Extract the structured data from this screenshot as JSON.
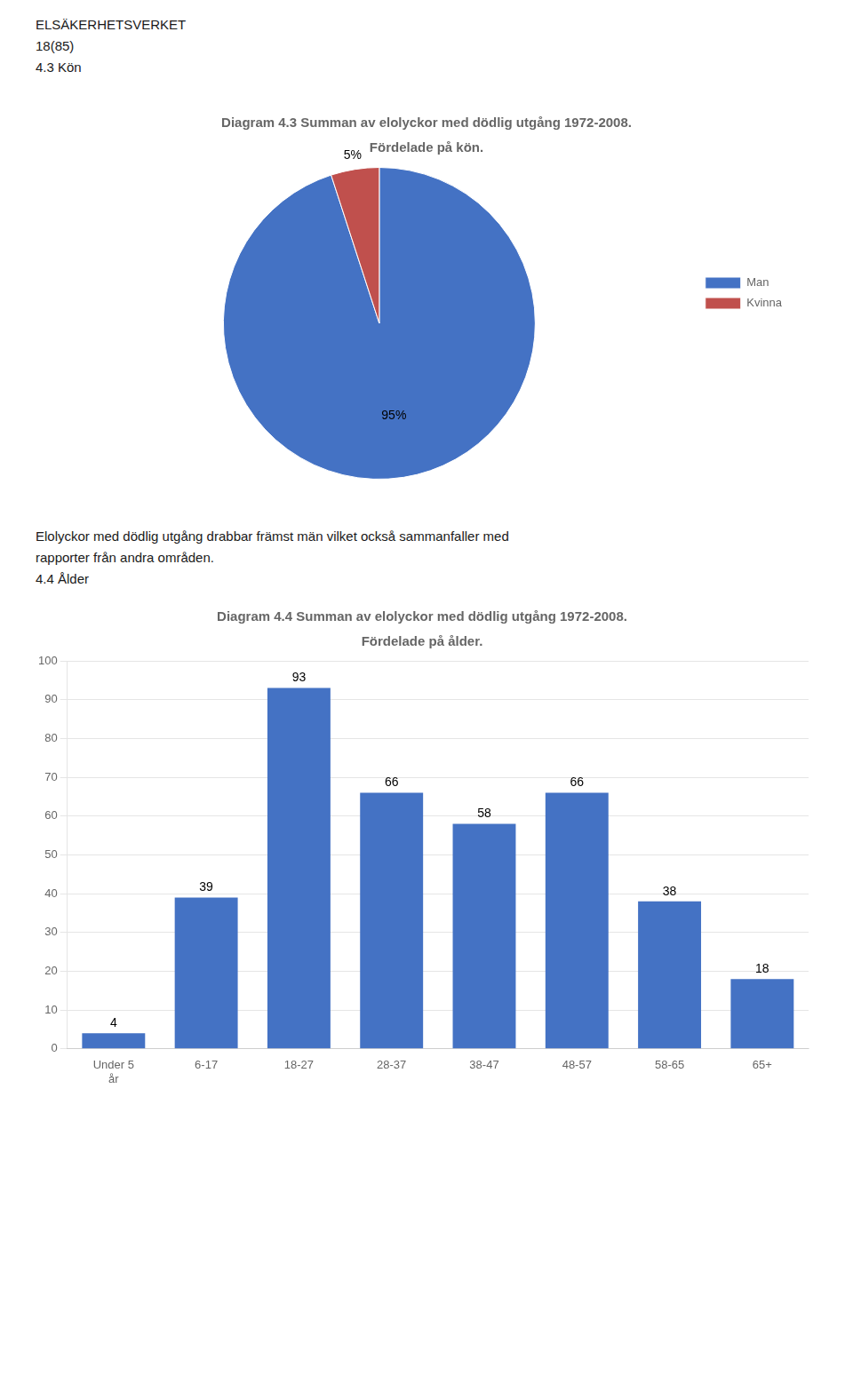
{
  "chart_data": [
    {
      "type": "pie",
      "title": "Diagram 4.3 Summan av elolyckor med dödlig utgång 1972-2008.",
      "subtitle": "Fördelade på kön.",
      "annotations": [
        "ELSÄKERHETSVERKET",
        "18(85)",
        "4.3 Kön"
      ],
      "categories": [
        "Man",
        "Kvinna"
      ],
      "values": [
        95,
        5
      ],
      "value_labels": [
        "95%",
        "5%"
      ],
      "colors": [
        "#4472C4",
        "#C0504D"
      ],
      "data_labels": true,
      "legend": "right"
    },
    {
      "type": "bar",
      "title": "Diagram 4.4 Summan av elolyckor med dödlig utgång 1972-2008.",
      "subtitle": "Fördelade på ålder.",
      "annotations": [
        "Elolyckor med dödlig utgång drabbar främst män vilket också sammanfaller med",
        "rapporter från andra områden.",
        "4.4 Ålder"
      ],
      "categories": [
        "Under 5\når",
        "6-17",
        "18-27",
        "28-37",
        "38-47",
        "48-57",
        "58-65",
        "65+"
      ],
      "values": [
        4,
        39,
        93,
        66,
        58,
        66,
        38,
        18
      ],
      "color": "#4472C4",
      "ylim": [
        0,
        100
      ],
      "yticks": [
        0,
        10,
        20,
        30,
        40,
        50,
        60,
        70,
        80,
        90,
        100
      ],
      "grid": true,
      "data_labels": true
    }
  ]
}
